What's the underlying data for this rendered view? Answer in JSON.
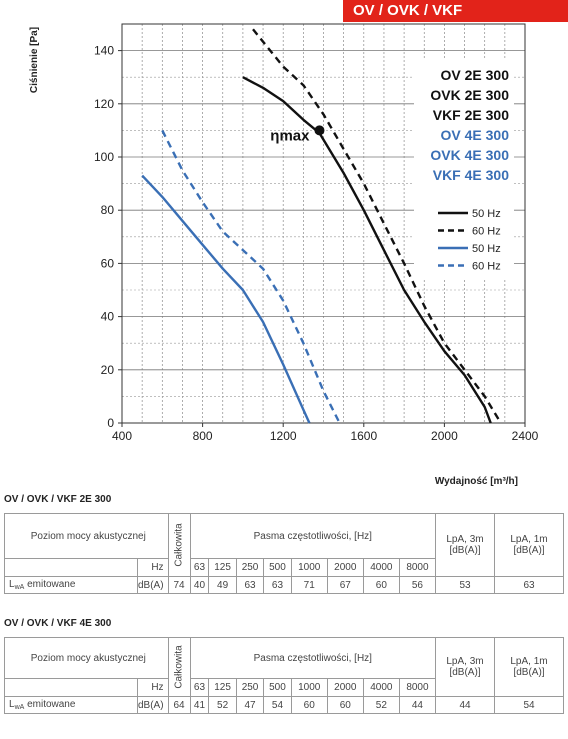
{
  "header": {
    "title": "OV / OVK / VKF"
  },
  "chart_data": {
    "type": "line",
    "ylabel": "Ciśnienie [Pa]",
    "xlabel": "Wydajność [m³/h]",
    "xlim": [
      400,
      2400
    ],
    "ylim": [
      0,
      150
    ],
    "x_ticks": [
      400,
      800,
      1200,
      1600,
      2000,
      2400
    ],
    "y_ticks": [
      0,
      20,
      40,
      60,
      80,
      100,
      120,
      140
    ],
    "grid": true,
    "series": [
      {
        "name": "50 Hz",
        "model": "2E",
        "color": "#111111",
        "dashed": false,
        "points": [
          [
            1000,
            130
          ],
          [
            1100,
            126
          ],
          [
            1200,
            121
          ],
          [
            1300,
            114
          ],
          [
            1380,
            109
          ],
          [
            1500,
            94
          ],
          [
            1600,
            80
          ],
          [
            1700,
            65
          ],
          [
            1800,
            50
          ],
          [
            1900,
            38
          ],
          [
            2000,
            27
          ],
          [
            2100,
            18
          ],
          [
            2200,
            6
          ],
          [
            2230,
            0
          ]
        ]
      },
      {
        "name": "60 Hz",
        "model": "2E",
        "color": "#111111",
        "dashed": true,
        "points": [
          [
            1050,
            148
          ],
          [
            1200,
            134
          ],
          [
            1300,
            127
          ],
          [
            1400,
            116
          ],
          [
            1500,
            103
          ],
          [
            1600,
            90
          ],
          [
            1700,
            75
          ],
          [
            1800,
            60
          ],
          [
            1900,
            44
          ],
          [
            2000,
            30
          ],
          [
            2100,
            20
          ],
          [
            2200,
            10
          ],
          [
            2280,
            0
          ]
        ]
      },
      {
        "name": "50 Hz",
        "model": "4E",
        "color": "#3a6fb5",
        "dashed": false,
        "points": [
          [
            500,
            93
          ],
          [
            600,
            85
          ],
          [
            700,
            76
          ],
          [
            800,
            67
          ],
          [
            900,
            58
          ],
          [
            1000,
            50
          ],
          [
            1100,
            38
          ],
          [
            1200,
            22
          ],
          [
            1300,
            5
          ],
          [
            1330,
            0
          ]
        ]
      },
      {
        "name": "60 Hz",
        "model": "4E",
        "color": "#3a6fb5",
        "dashed": true,
        "points": [
          [
            600,
            110
          ],
          [
            700,
            95
          ],
          [
            800,
            83
          ],
          [
            900,
            72
          ],
          [
            1000,
            65
          ],
          [
            1100,
            58
          ],
          [
            1200,
            46
          ],
          [
            1300,
            30
          ],
          [
            1400,
            12
          ],
          [
            1480,
            0
          ]
        ]
      }
    ],
    "models": [
      {
        "label": "OV 2E 300",
        "color": "#111111"
      },
      {
        "label": "OVK 2E 300",
        "color": "#111111"
      },
      {
        "label": "VKF 2E 300",
        "color": "#111111"
      },
      {
        "label": "OV 4E 300",
        "color": "#3a6fb5"
      },
      {
        "label": "OVK 4E 300",
        "color": "#3a6fb5"
      },
      {
        "label": "VKF 4E 300",
        "color": "#3a6fb5"
      }
    ],
    "annotation": {
      "label": "ηmax",
      "x": 1380,
      "y": 110
    }
  },
  "tables": [
    {
      "title": "OV / OVK / VKF 2E 300",
      "level_label": "Poziom mocy akustycznej",
      "total_label": "Całkowita",
      "bands_label": "Pasma częstotliwości, [Hz]",
      "lpa3_label": "LpA, 3m [dB(A)]",
      "lpa1_label": "LpA, 1m [dB(A)]",
      "hz_label": "Hz",
      "bands": [
        "63",
        "125",
        "250",
        "500",
        "1000",
        "2000",
        "4000",
        "8000"
      ],
      "row_label_main": "L",
      "row_label_sub": "wA",
      "row_label_rest": " emitowane",
      "unit": "dB(A)",
      "total": "74",
      "values": [
        "40",
        "49",
        "63",
        "63",
        "71",
        "67",
        "60",
        "56"
      ],
      "lpa3": "53",
      "lpa1": "63"
    },
    {
      "title": "OV / OVK / VKF 4E 300",
      "level_label": "Poziom mocy akustycznej",
      "total_label": "Całkowita",
      "bands_label": "Pasma częstotliwości, [Hz]",
      "lpa3_label": "LpA, 3m [dB(A)]",
      "lpa1_label": "LpA, 1m [dB(A)]",
      "hz_label": "Hz",
      "bands": [
        "63",
        "125",
        "250",
        "500",
        "1000",
        "2000",
        "4000",
        "8000"
      ],
      "row_label_main": "L",
      "row_label_sub": "wA",
      "row_label_rest": " emitowane",
      "unit": "dB(A)",
      "total": "64",
      "values": [
        "41",
        "52",
        "47",
        "54",
        "60",
        "60",
        "52",
        "44"
      ],
      "lpa3": "44",
      "lpa1": "54"
    }
  ]
}
